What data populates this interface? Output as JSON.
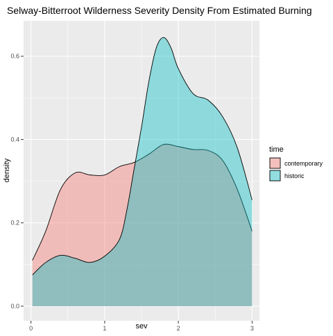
{
  "chart_data": {
    "type": "area",
    "title": "Selway-Bitterroot Wilderness Severity Density From Estimated Burning",
    "xlabel": "sev",
    "ylabel": "density",
    "xlim": [
      -0.1,
      3.1
    ],
    "ylim": [
      -0.035,
      0.685
    ],
    "x_ticks": [
      0,
      1,
      2,
      3
    ],
    "x_tick_labels": [
      "0",
      "1",
      "2",
      "3"
    ],
    "y_ticks": [
      0.0,
      0.2,
      0.4,
      0.6
    ],
    "y_tick_labels": [
      "0.0",
      "0.2",
      "0.4",
      "0.6"
    ],
    "grid": true,
    "legend": {
      "title": "time",
      "position": "right"
    },
    "series": [
      {
        "name": "contemporary",
        "fill": "#F8766D",
        "x": [
          0.02,
          0.2,
          0.4,
          0.6,
          0.8,
          1.0,
          1.2,
          1.4,
          1.6,
          1.8,
          2.0,
          2.2,
          2.4,
          2.6,
          2.8,
          3.0
        ],
        "y": [
          0.11,
          0.18,
          0.28,
          0.32,
          0.315,
          0.315,
          0.335,
          0.345,
          0.365,
          0.388,
          0.383,
          0.376,
          0.374,
          0.35,
          0.28,
          0.18
        ]
      },
      {
        "name": "historic",
        "fill": "#00BFC4",
        "x": [
          0.02,
          0.2,
          0.4,
          0.6,
          0.8,
          1.0,
          1.2,
          1.3,
          1.4,
          1.5,
          1.6,
          1.7,
          1.8,
          1.9,
          2.0,
          2.2,
          2.4,
          2.6,
          2.8,
          3.0
        ],
        "y": [
          0.075,
          0.105,
          0.122,
          0.115,
          0.105,
          0.12,
          0.16,
          0.23,
          0.33,
          0.43,
          0.54,
          0.62,
          0.645,
          0.62,
          0.57,
          0.51,
          0.495,
          0.455,
          0.38,
          0.255
        ]
      }
    ]
  }
}
